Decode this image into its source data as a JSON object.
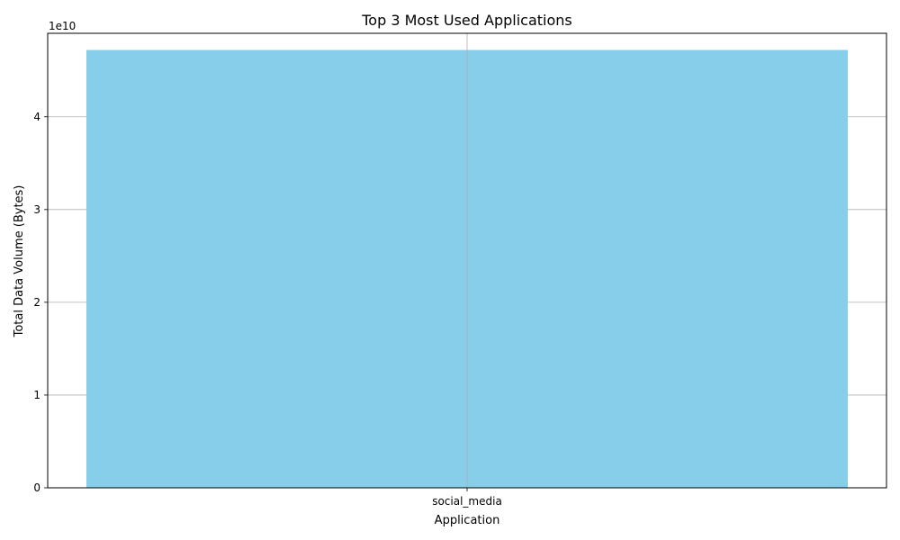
{
  "chart_data": {
    "type": "bar",
    "title": "Top 3 Most Used Applications",
    "xlabel": "Application",
    "ylabel": "Total Data Volume (Bytes)",
    "categories": [
      "social_media"
    ],
    "values": [
      47200000000
    ],
    "ylim": [
      0,
      49000000000
    ],
    "y_ticks": [
      0,
      10000000000,
      20000000000,
      30000000000,
      40000000000
    ],
    "y_tick_labels": [
      "0",
      "1",
      "2",
      "3",
      "4"
    ],
    "y_offset_label": "1e10",
    "grid": true,
    "bar_color": "#87CEEB"
  }
}
